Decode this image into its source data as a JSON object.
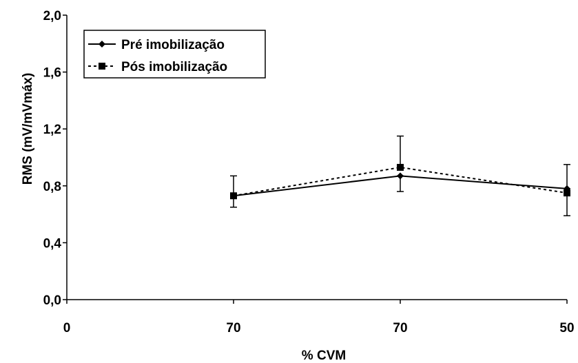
{
  "chart_data": {
    "type": "line",
    "xlabel": "% CVM",
    "ylabel": "RMS (mV/mVmáx)",
    "x_tick_labels": [
      "0",
      "70",
      "70",
      "50"
    ],
    "y_ticks": [
      "0,0",
      "0,4",
      "0,8",
      "1,2",
      "1,6",
      "2,0"
    ],
    "ylim": [
      0,
      2.0
    ],
    "y_tick_values": [
      0,
      0.4,
      0.8,
      1.2,
      1.6,
      2.0
    ],
    "x_positions": [
      1,
      2,
      3
    ],
    "xlim": [
      0,
      3
    ],
    "legend_position": "top-left",
    "grid": false,
    "series": [
      {
        "name": "Pré imobilização",
        "marker": "diamond",
        "line_style": "solid",
        "values": [
          0.73,
          0.87,
          0.78
        ],
        "error_upper": [
          0.87,
          0.87,
          0.95
        ],
        "error_lower": [
          0.65,
          0.76,
          0.78
        ]
      },
      {
        "name": "Pós imobilização",
        "marker": "square",
        "line_style": "dotted",
        "values": [
          0.73,
          0.93,
          0.75
        ],
        "error_upper": [
          0.73,
          1.15,
          0.75
        ],
        "error_lower": [
          0.73,
          0.93,
          0.59
        ]
      }
    ]
  }
}
